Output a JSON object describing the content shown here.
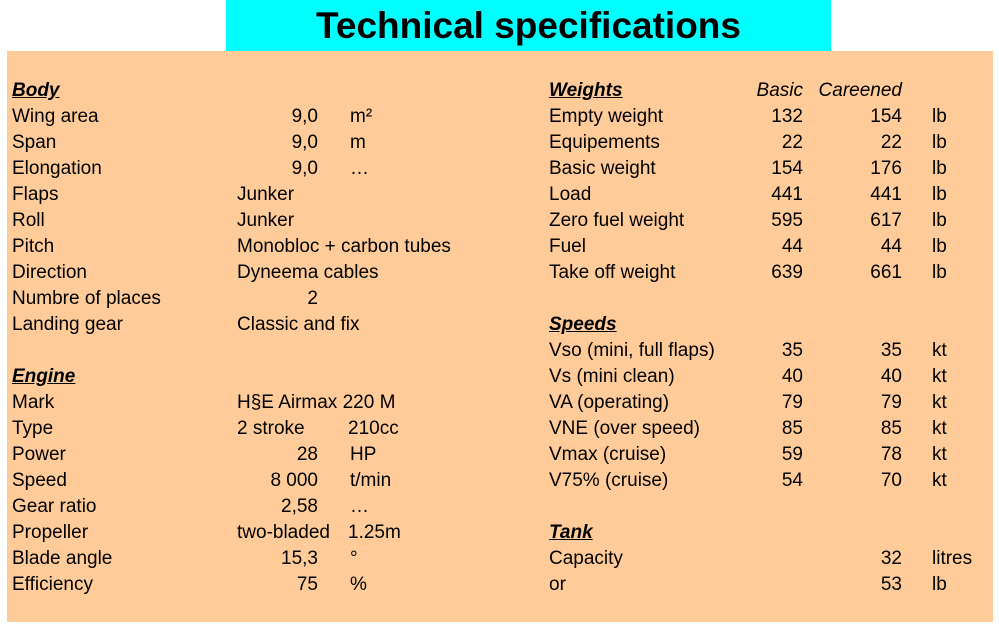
{
  "title": "Technical specifications",
  "left": [
    {
      "header": "Body"
    },
    {
      "label": "Wing area",
      "value": "9,0",
      "unit": "m²"
    },
    {
      "label": "Span",
      "value": "9,0",
      "unit": "m"
    },
    {
      "label": "Elongation",
      "value": "9,0",
      "unit": "…"
    },
    {
      "label": "Flaps",
      "text": "Junker"
    },
    {
      "label": "Roll",
      "text": "Junker"
    },
    {
      "label": "Pitch",
      "text": "Monobloc + carbon tubes"
    },
    {
      "label": "Direction",
      "text": "Dyneema cables"
    },
    {
      "label": "Numbre of places",
      "value": "2"
    },
    {
      "label": "Landing gear",
      "text": "Classic and fix"
    },
    null,
    {
      "header": "Engine"
    },
    {
      "label": "Mark",
      "text": "H§E Airmax 220 M"
    },
    {
      "label": "Type",
      "text": "2 stroke",
      "unit": "210cc"
    },
    {
      "label": "Power",
      "value": "28",
      "unit": "HP"
    },
    {
      "label": "Speed",
      "value": "8 000",
      "unit": "t/min"
    },
    {
      "label": "Gear ratio",
      "value": "2,58",
      "unit": "…"
    },
    {
      "label": "Propeller",
      "text": "two-bladed",
      "unit": "1.25m"
    },
    {
      "label": "Blade angle",
      "value": "15,3",
      "unit": "°"
    },
    {
      "label": "Efficiency",
      "value": "75",
      "unit": "%"
    }
  ],
  "right": [
    {
      "header": "Weights",
      "basic": "Basic",
      "careened": "Careened",
      "italic": true
    },
    {
      "label": "Empty weight",
      "basic": "132",
      "careened": "154",
      "unit": "lb"
    },
    {
      "label": "Equipements",
      "basic": "22",
      "careened": "22",
      "unit": "lb"
    },
    {
      "label": "Basic weight",
      "basic": "154",
      "careened": "176",
      "unit": "lb"
    },
    {
      "label": "Load",
      "basic": "441",
      "careened": "441",
      "unit": "lb"
    },
    {
      "label": "Zero fuel weight",
      "basic": "595",
      "careened": "617",
      "unit": "lb"
    },
    {
      "label": "Fuel",
      "basic": "44",
      "careened": "44",
      "unit": "lb"
    },
    {
      "label": "Take off weight",
      "basic": "639",
      "careened": "661",
      "unit": "lb"
    },
    null,
    {
      "header": "Speeds"
    },
    {
      "label": "Vso (mini, full flaps)",
      "basic": "35",
      "careened": "35",
      "unit": "kt"
    },
    {
      "label": "Vs (mini clean)",
      "basic": "40",
      "careened": "40",
      "unit": "kt"
    },
    {
      "label": "VA (operating)",
      "basic": "79",
      "careened": "79",
      "unit": "kt"
    },
    {
      "label": "VNE (over speed)",
      "basic": "85",
      "careened": "85",
      "unit": "kt"
    },
    {
      "label": "Vmax (cruise)",
      "basic": "59",
      "careened": "78",
      "unit": "kt"
    },
    {
      "label": "V75% (cruise)",
      "basic": "54",
      "careened": "70",
      "unit": "kt"
    },
    null,
    {
      "header": "Tank"
    },
    {
      "label": "Capacity",
      "careened": "32",
      "unit": "litres"
    },
    {
      "label": "or",
      "careened": "53",
      "unit": "lb"
    }
  ]
}
